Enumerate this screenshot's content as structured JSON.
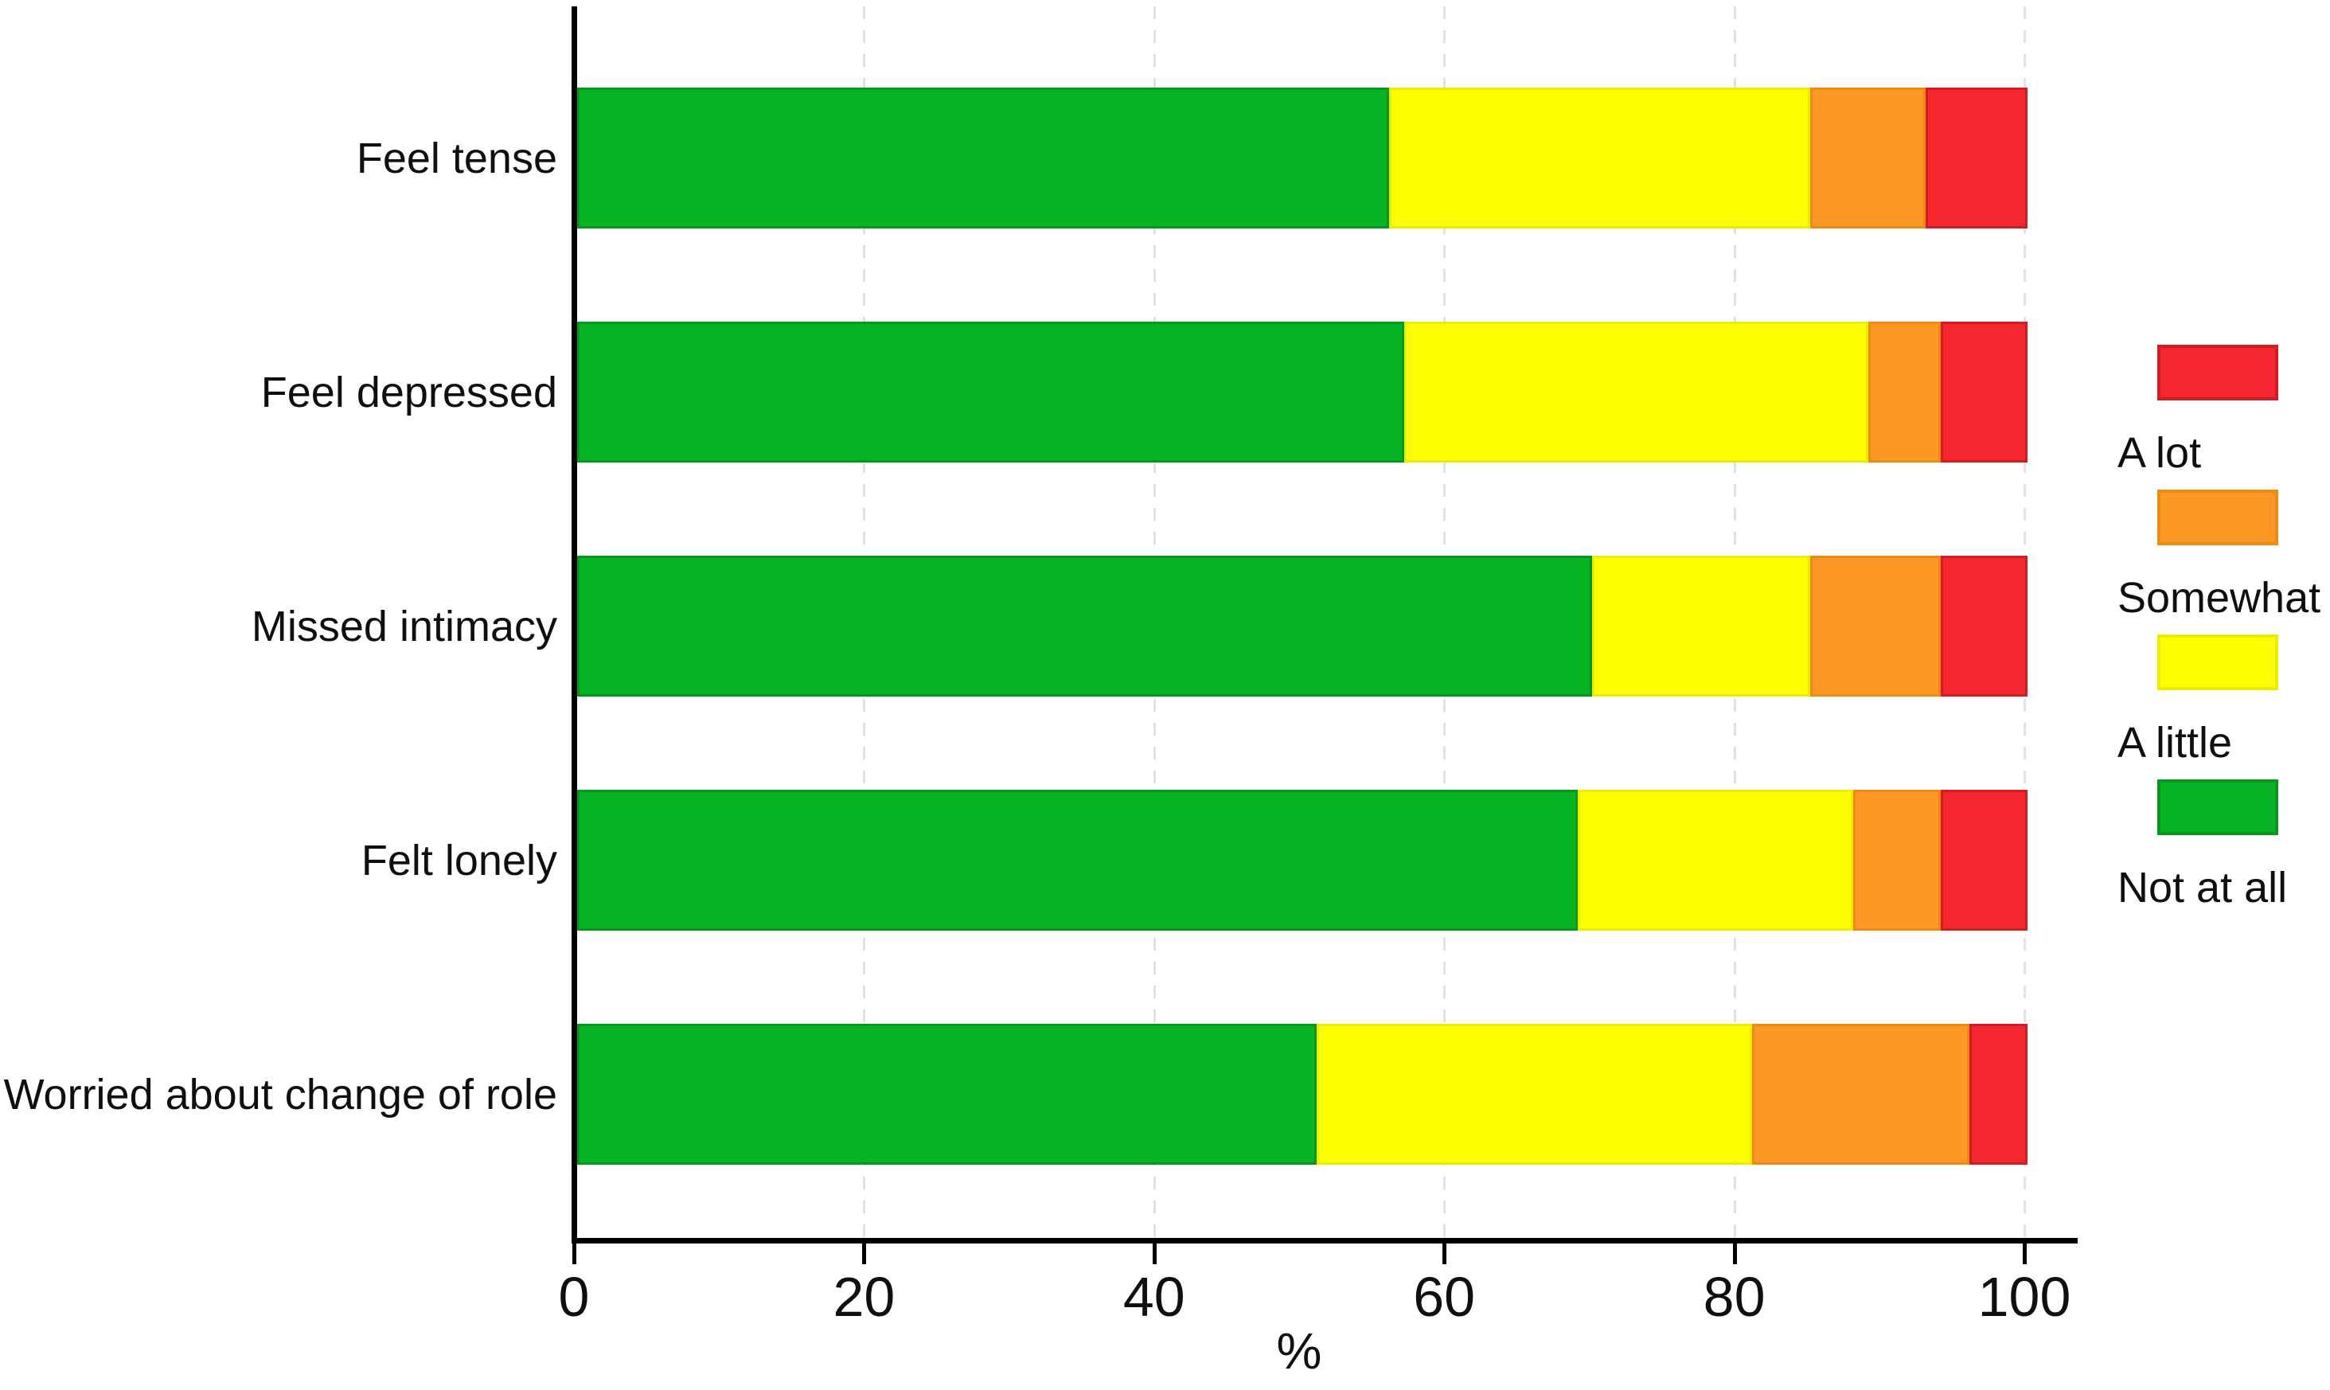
{
  "chart_data": {
    "type": "bar",
    "orientation": "horizontal-stacked",
    "title": "",
    "xlabel": "%",
    "ylabel": "",
    "xlim": [
      0,
      100
    ],
    "xticks": [
      0,
      20,
      40,
      60,
      80,
      100
    ],
    "grid": "vertical-dashed-light-gray",
    "legend_position": "right",
    "categories": [
      "Feel tense",
      "Feel depressed",
      "Missed intimacy",
      "Felt lonely",
      "Worried about change of role"
    ],
    "series": [
      {
        "name": "Not at all",
        "color": "#06b424",
        "border": "#04991c",
        "values": [
          56,
          57,
          70,
          69,
          51
        ]
      },
      {
        "name": "A little",
        "color": "#fdff00",
        "border": "#e9ee00",
        "values": [
          29,
          32,
          15,
          19,
          30
        ]
      },
      {
        "name": "Somewhat",
        "color": "#fc9826",
        "border": "#ee8a10",
        "values": [
          8,
          5,
          9,
          6,
          15
        ]
      },
      {
        "name": "A lot",
        "color": "#f4262e",
        "border": "#d11c24",
        "values": [
          7,
          6,
          6,
          6,
          4
        ]
      }
    ],
    "legend": [
      {
        "label": "A lot",
        "color": "#f4262e",
        "border": "#d11c24"
      },
      {
        "label": "Somewhat",
        "color": "#fc9826",
        "border": "#ee8a10"
      },
      {
        "label": "A little",
        "color": "#fdff00",
        "border": "#e9ee00"
      },
      {
        "label": "Not at all",
        "color": "#06b424",
        "border": "#04991c"
      }
    ],
    "colors": {
      "axis": "#000000",
      "gridline": "#e2e2e2",
      "text": "#0f0f0f",
      "background": "#ffffff"
    }
  }
}
